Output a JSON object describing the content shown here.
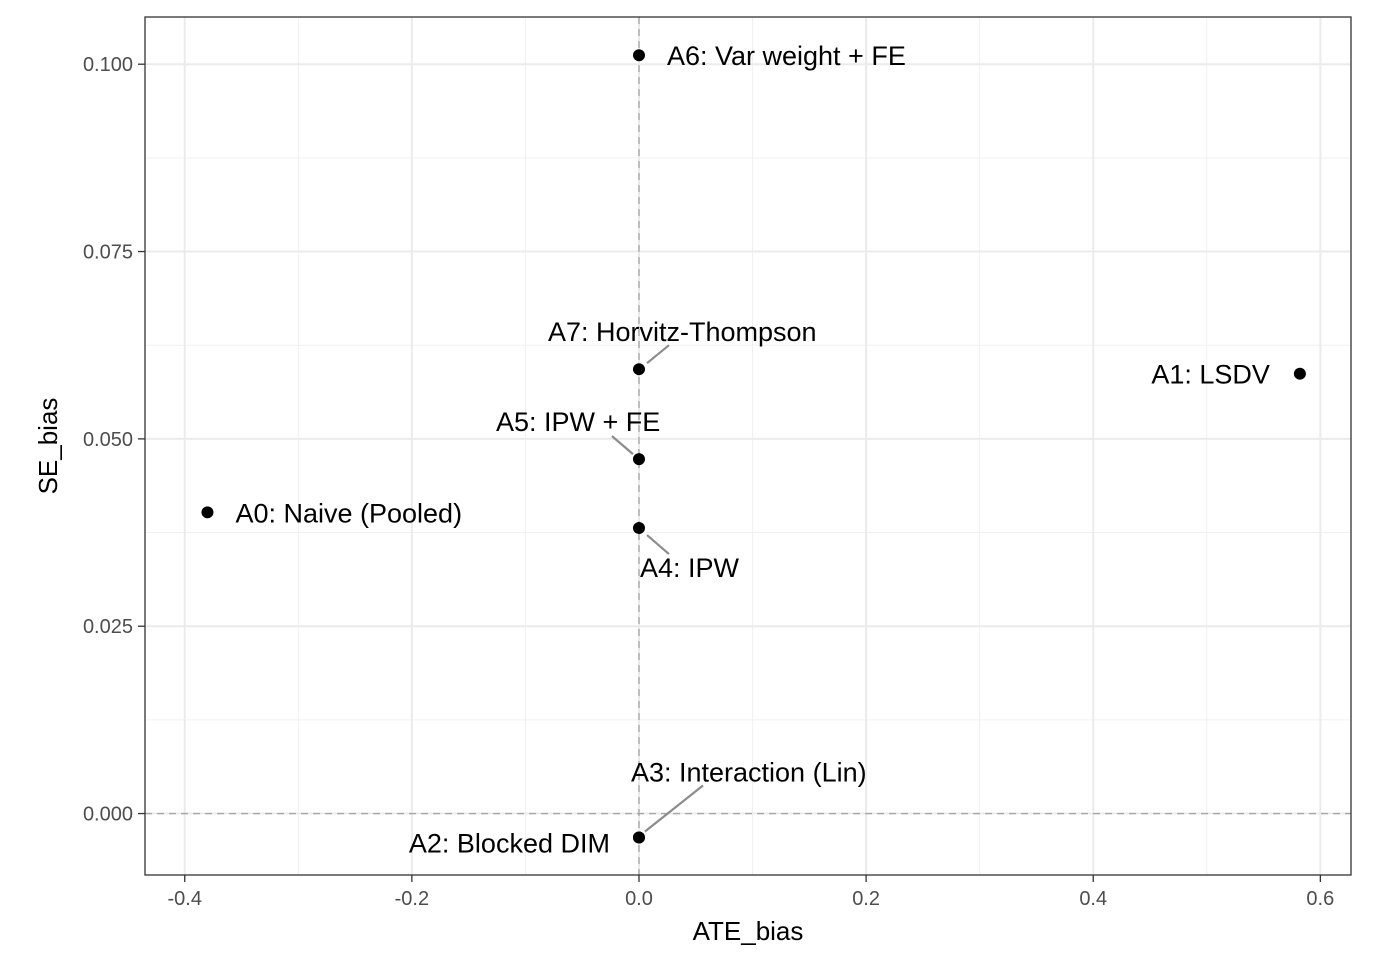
{
  "chart_data": {
    "type": "scatter",
    "xlabel": "ATE_bias",
    "ylabel": "SE_bias",
    "xlim": [
      -0.435,
      0.627
    ],
    "ylim": [
      -0.0082,
      0.1063
    ],
    "x_ticks": [
      -0.4,
      -0.2,
      0.0,
      0.2,
      0.4,
      0.6
    ],
    "x_tick_labels": [
      "-0.4",
      "-0.2",
      "0.0",
      "0.2",
      "0.4",
      "0.6"
    ],
    "y_ticks": [
      0.0,
      0.025,
      0.05,
      0.075,
      0.1
    ],
    "y_tick_labels": [
      "0.000",
      "0.025",
      "0.050",
      "0.075",
      "0.100"
    ],
    "reference_lines": {
      "x": 0,
      "y": 0,
      "style": "dashed"
    },
    "grid": true,
    "theme": "bw",
    "points": [
      {
        "label": "A0: Naive (Pooled)",
        "x": -0.38,
        "y": 0.0402,
        "label_side": "right"
      },
      {
        "label": "A1: LSDV",
        "x": 0.582,
        "y": 0.0587,
        "label_side": "left"
      },
      {
        "label": "A2: Blocked DIM",
        "x": 0.0,
        "y": -0.0032,
        "label_side": "left-below"
      },
      {
        "label": "A3: Interaction (Lin)",
        "x": 0.0,
        "y": -0.0032,
        "label_side": "above-right",
        "leader": true
      },
      {
        "label": "A4: IPW",
        "x": 0.0,
        "y": 0.0381,
        "label_side": "below-right",
        "leader": true
      },
      {
        "label": "A5: IPW + FE",
        "x": 0.0,
        "y": 0.0473,
        "label_side": "above-left",
        "leader": true
      },
      {
        "label": "A6: Var weight + FE",
        "x": 0.0,
        "y": 0.1012,
        "label_side": "right"
      },
      {
        "label": "A7: Horvitz-Thompson",
        "x": 0.0,
        "y": 0.0593,
        "label_side": "above-right",
        "leader": true
      }
    ]
  }
}
